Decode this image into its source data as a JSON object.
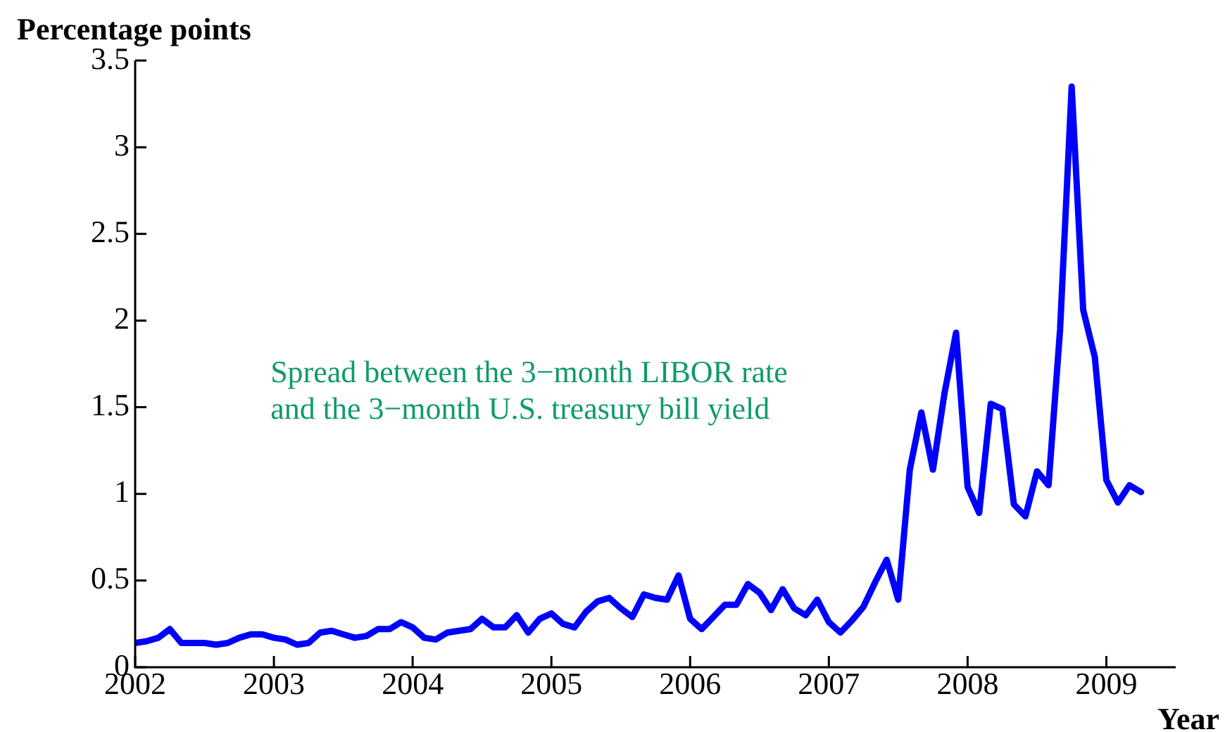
{
  "chart_data": {
    "type": "line",
    "xlabel": "Year",
    "ylabel": "Percentage points",
    "annotations": [
      "Spread between the 3−month LIBOR rate\nand the 3−month U.S. treasury bill yield"
    ],
    "x": [
      "2002-01",
      "2002-02",
      "2002-03",
      "2002-04",
      "2002-05",
      "2002-06",
      "2002-07",
      "2002-08",
      "2002-09",
      "2002-10",
      "2002-11",
      "2002-12",
      "2003-01",
      "2003-02",
      "2003-03",
      "2003-04",
      "2003-05",
      "2003-06",
      "2003-07",
      "2003-08",
      "2003-09",
      "2003-10",
      "2003-11",
      "2003-12",
      "2004-01",
      "2004-02",
      "2004-03",
      "2004-04",
      "2004-05",
      "2004-06",
      "2004-07",
      "2004-08",
      "2004-09",
      "2004-10",
      "2004-11",
      "2004-12",
      "2005-01",
      "2005-02",
      "2005-03",
      "2005-04",
      "2005-05",
      "2005-06",
      "2005-07",
      "2005-08",
      "2005-09",
      "2005-10",
      "2005-11",
      "2005-12",
      "2006-01",
      "2006-02",
      "2006-03",
      "2006-04",
      "2006-05",
      "2006-06",
      "2006-07",
      "2006-08",
      "2006-09",
      "2006-10",
      "2006-11",
      "2006-12",
      "2007-01",
      "2007-02",
      "2007-03",
      "2007-04",
      "2007-05",
      "2007-06",
      "2007-07",
      "2007-08",
      "2007-09",
      "2007-10",
      "2007-11",
      "2007-12",
      "2008-01",
      "2008-02",
      "2008-03",
      "2008-04",
      "2008-05",
      "2008-06",
      "2008-07",
      "2008-08",
      "2008-09",
      "2008-10",
      "2008-11",
      "2008-12",
      "2009-01",
      "2009-02",
      "2009-03",
      "2009-04"
    ],
    "series": [
      {
        "color": "#0000ff",
        "values": [
          0.14,
          0.15,
          0.17,
          0.22,
          0.14,
          0.14,
          0.14,
          0.13,
          0.14,
          0.17,
          0.19,
          0.19,
          0.17,
          0.16,
          0.13,
          0.14,
          0.2,
          0.21,
          0.19,
          0.17,
          0.18,
          0.22,
          0.22,
          0.26,
          0.23,
          0.17,
          0.16,
          0.2,
          0.21,
          0.22,
          0.28,
          0.23,
          0.23,
          0.3,
          0.2,
          0.28,
          0.31,
          0.25,
          0.23,
          0.32,
          0.38,
          0.4,
          0.34,
          0.29,
          0.42,
          0.4,
          0.39,
          0.53,
          0.28,
          0.22,
          0.29,
          0.36,
          0.36,
          0.48,
          0.43,
          0.33,
          0.45,
          0.34,
          0.3,
          0.39,
          0.26,
          0.2,
          0.27,
          0.35,
          0.49,
          0.62,
          0.39,
          1.14,
          1.47,
          1.14,
          1.58,
          1.93,
          1.04,
          0.89,
          1.52,
          1.49,
          0.94,
          0.87,
          1.13,
          1.05,
          1.95,
          3.35,
          2.06,
          1.79,
          1.08,
          0.95,
          1.05,
          1.01
        ]
      }
    ],
    "xlim": [
      "2002-01",
      "2009-07"
    ],
    "xticks": [
      "2002",
      "2003",
      "2004",
      "2005",
      "2006",
      "2007",
      "2008",
      "2009"
    ],
    "ylim": [
      0,
      3.5
    ],
    "yticks": [
      0,
      0.5,
      1,
      1.5,
      2,
      2.5,
      3,
      3.5
    ],
    "grid": false,
    "legend": false,
    "marker": "none",
    "line_style": "solid"
  }
}
